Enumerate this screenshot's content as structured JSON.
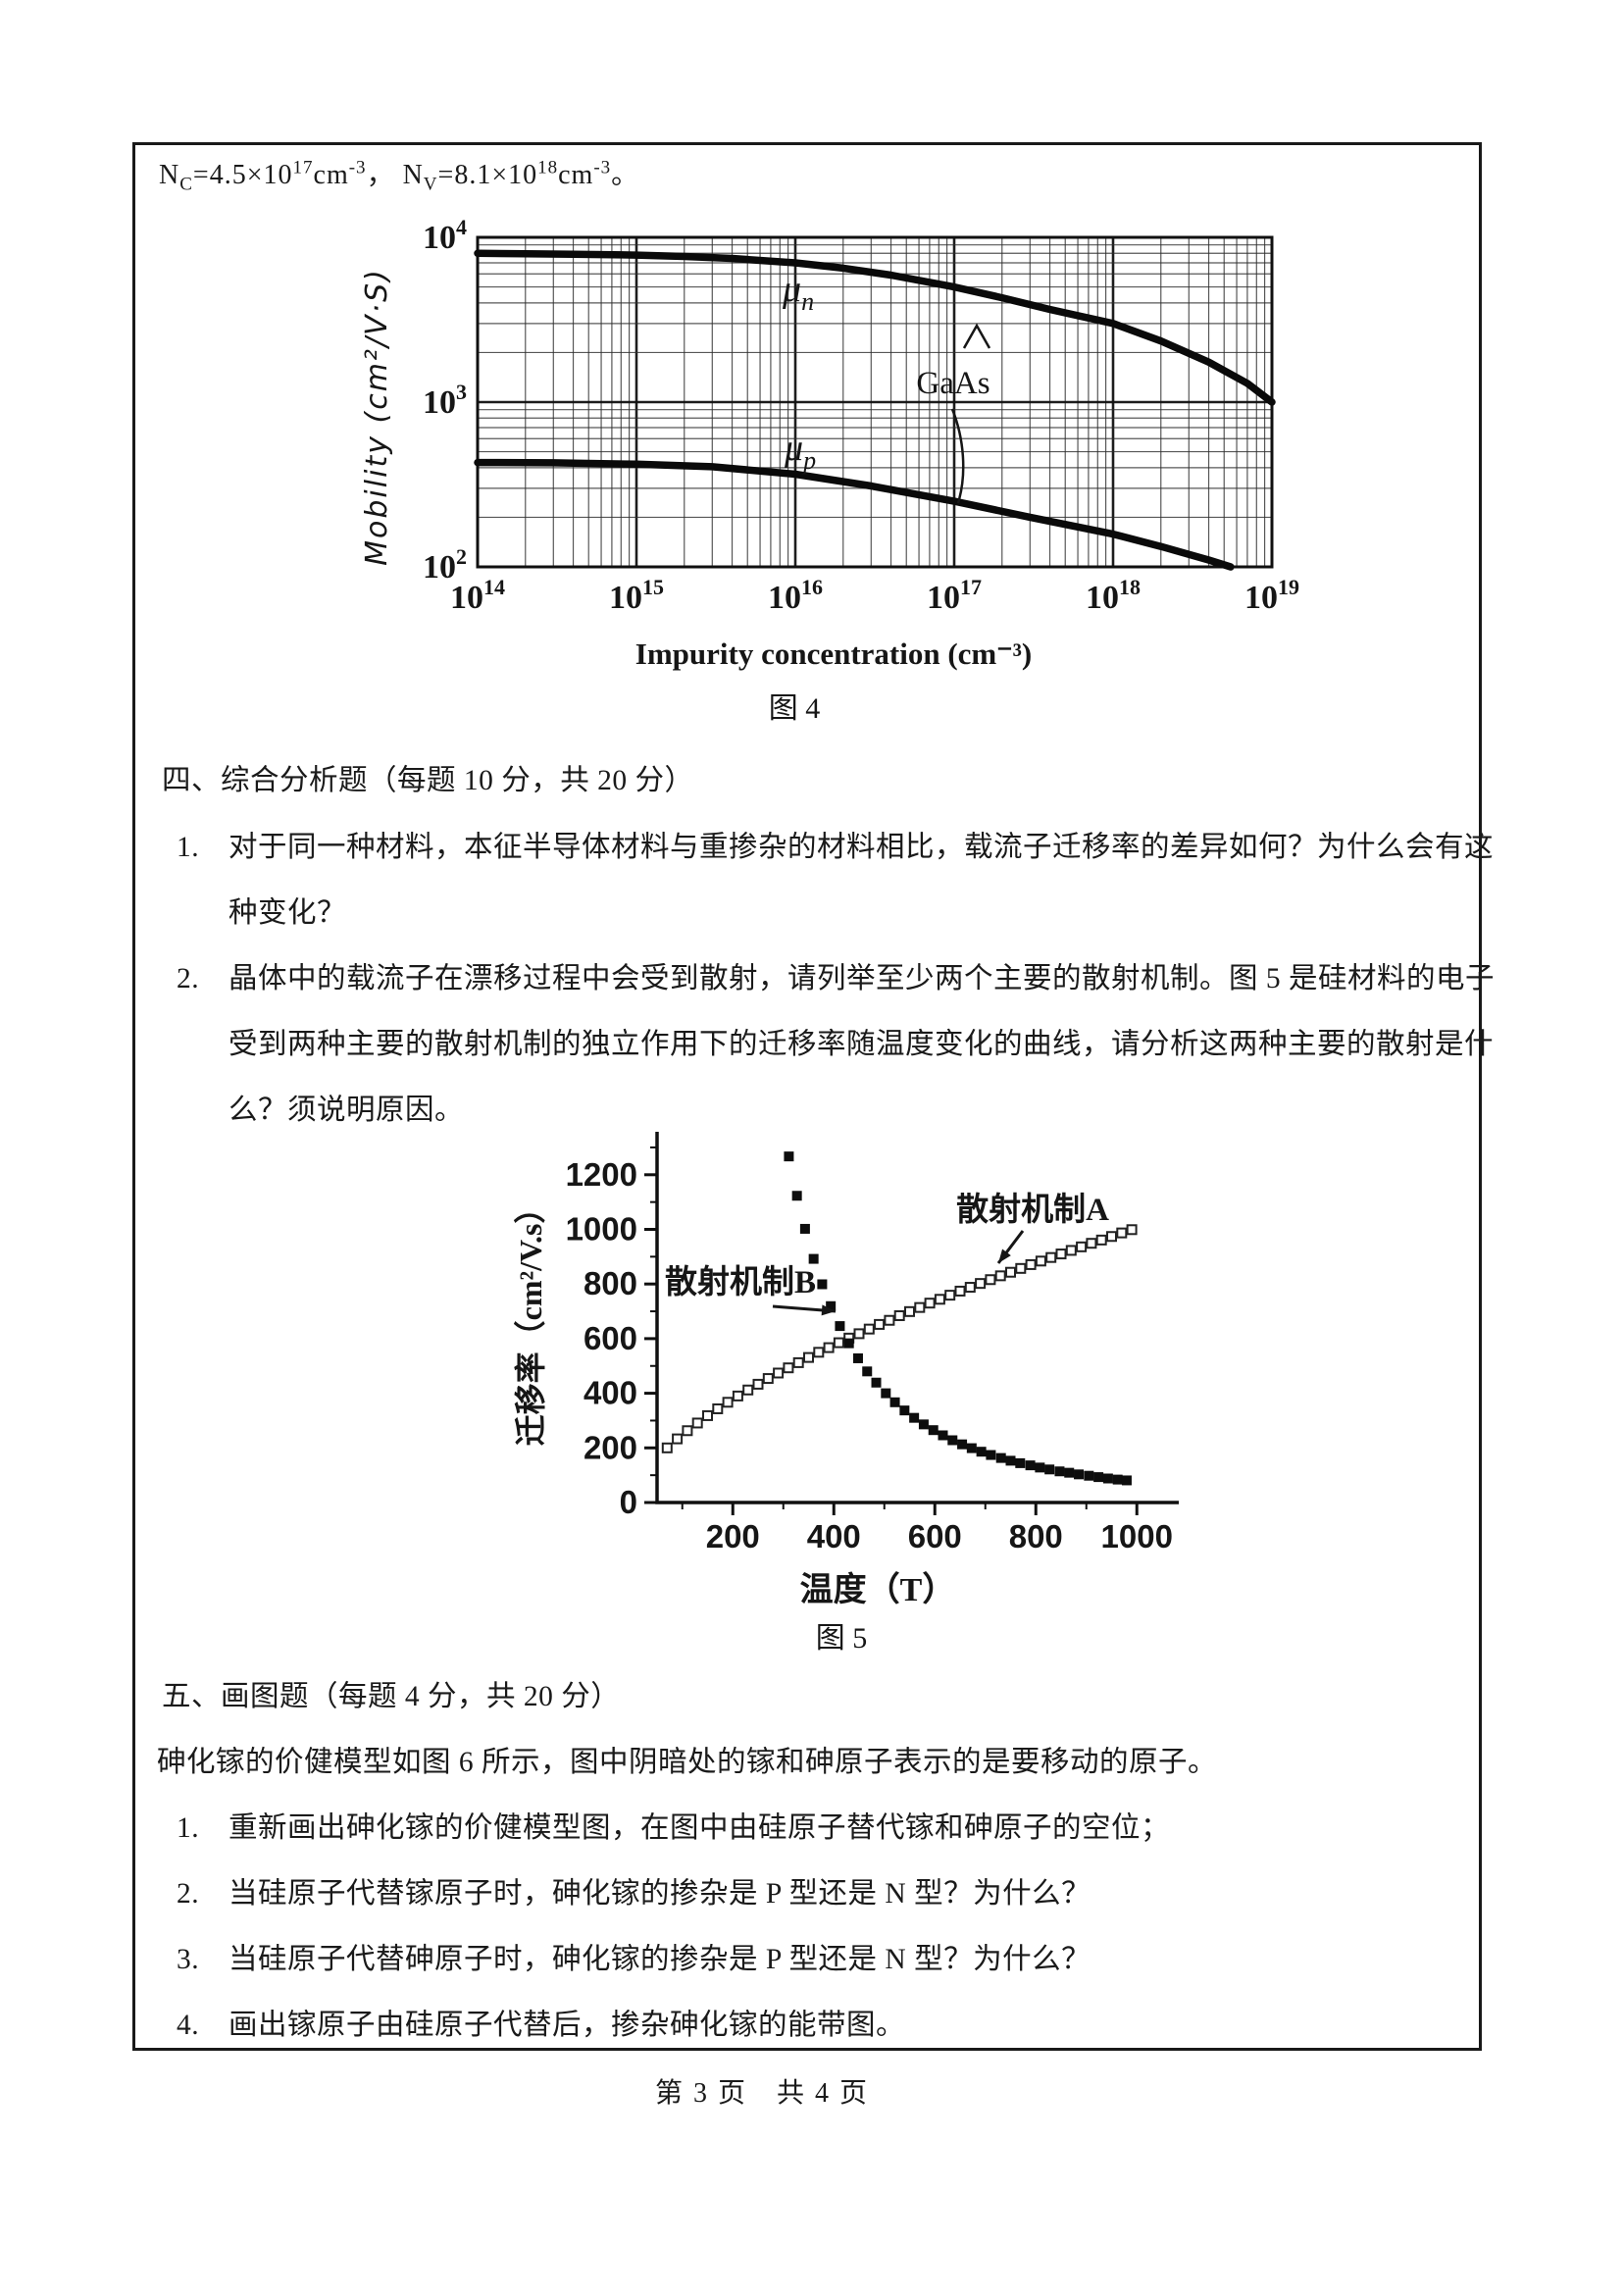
{
  "page": {
    "footer": "第 3 页　共 4 页",
    "ink_color": "#1a1a1a"
  },
  "constants_line": {
    "t1": "N",
    "s1": "C",
    "t2": "=4.5×10",
    "p2": "17",
    "t3": "cm",
    "p3": "-3",
    "t4": "，  N",
    "s4": "V",
    "t5": "=8.1×10",
    "p5": "18",
    "t6": "cm",
    "p6": "-3",
    "t7": "。"
  },
  "sections": {
    "four": {
      "heading": "四、综合分析题（每题 10 分，共 20 分）",
      "items": [
        {
          "num": "1.",
          "lines": [
            "对于同一种材料，本征半导体材料与重掺杂的材料相比，载流子迁移率的差异如何？为什么会有这",
            "种变化？"
          ]
        },
        {
          "num": "2.",
          "lines": [
            "晶体中的载流子在漂移过程中会受到散射，请列举至少两个主要的散射机制。图 5 是硅材料的电子",
            "受到两种主要的散射机制的独立作用下的迁移率随温度变化的曲线，请分析这两种主要的散射是什",
            "么？须说明原因。"
          ]
        }
      ]
    },
    "five": {
      "heading": "五、画图题（每题 4 分，共 20 分）",
      "intro": "砷化镓的价健模型如图 6 所示，图中阴暗处的镓和砷原子表示的是要移动的原子。",
      "items": [
        {
          "num": "1.",
          "text": "重新画出砷化镓的价健模型图，在图中由硅原子替代镓和砷原子的空位；"
        },
        {
          "num": "2.",
          "text": "当硅原子代替镓原子时，砷化镓的掺杂是 P 型还是 N 型？为什么？"
        },
        {
          "num": "3.",
          "text": "当硅原子代替砷原子时，砷化镓的掺杂是 P 型还是 N 型？为什么？"
        },
        {
          "num": "4.",
          "text": "画出镓原子由硅原子代替后，掺杂砷化镓的能带图。"
        }
      ]
    }
  },
  "chart_data": [
    {
      "type": "line",
      "scale": "log-log",
      "title": "图 4",
      "xlabel": "Impurity concentration (cm⁻³)",
      "ylabel": "Mobility (cm²/V·S)",
      "material_label": "GaAs",
      "xlim": [
        100000000000000.0,
        1e+19
      ],
      "ylim": [
        100,
        10000
      ],
      "x_tick_exponents": [
        14,
        15,
        16,
        17,
        18,
        19
      ],
      "y_tick_exponents": [
        4,
        3,
        2
      ],
      "grid": "log-minor-and-major",
      "series": [
        {
          "name": "electron-mobility",
          "label_base": "μ",
          "label_sub": "n",
          "points": [
            [
              100000000000000.0,
              8000
            ],
            [
              200000000000000.0,
              7950
            ],
            [
              400000000000000.0,
              7900
            ],
            [
              1000000000000000.0,
              7800
            ],
            [
              2000000000000000.0,
              7650
            ],
            [
              4000000000000000.0,
              7450
            ],
            [
              1e+16,
              7000
            ],
            [
              2e+16,
              6500
            ],
            [
              4e+16,
              5900
            ],
            [
              1e+17,
              5000
            ],
            [
              2e+17,
              4300
            ],
            [
              4e+17,
              3650
            ],
            [
              1e+18,
              3000
            ],
            [
              2e+18,
              2350
            ],
            [
              4e+18,
              1750
            ],
            [
              7e+18,
              1300
            ],
            [
              1e+19,
              1000
            ]
          ]
        },
        {
          "name": "hole-mobility",
          "label_base": "μ",
          "label_sub": "p",
          "points": [
            [
              100000000000000.0,
              430
            ],
            [
              300000000000000.0,
              428
            ],
            [
              1000000000000000.0,
              420
            ],
            [
              3000000000000000.0,
              405
            ],
            [
              1e+16,
              365
            ],
            [
              3e+16,
              310
            ],
            [
              1e+17,
              250
            ],
            [
              3e+17,
              200
            ],
            [
              1e+18,
              158
            ],
            [
              2e+18,
              133
            ],
            [
              4e+18,
              110
            ],
            [
              5.5e+18,
              100
            ]
          ]
        }
      ]
    },
    {
      "type": "scatter",
      "title": "图 5",
      "xlabel": "温度（T）",
      "ylabel": "迁移率（cm²/V.s）",
      "xlim": [
        50,
        1070
      ],
      "ylim": [
        0,
        1340
      ],
      "x_ticks": [
        200,
        400,
        600,
        800,
        1000
      ],
      "y_ticks": [
        0,
        200,
        400,
        600,
        800,
        1000,
        1200
      ],
      "annotations": [
        {
          "text": "散射机制A",
          "series": "A"
        },
        {
          "text": "散射机制B",
          "series": "B"
        }
      ],
      "series": [
        {
          "name": "散射机制A",
          "marker": "open-square",
          "points": [
            [
              70,
              200
            ],
            [
              90,
              233
            ],
            [
              110,
              263
            ],
            [
              130,
              291
            ],
            [
              150,
              318
            ],
            [
              170,
              343
            ],
            [
              190,
              367
            ],
            [
              210,
              390
            ],
            [
              230,
              412
            ],
            [
              250,
              433
            ],
            [
              270,
              454
            ],
            [
              290,
              474
            ],
            [
              310,
              493
            ],
            [
              330,
              512
            ],
            [
              350,
              531
            ],
            [
              370,
              550
            ],
            [
              390,
              567
            ],
            [
              410,
              585
            ],
            [
              430,
              602
            ],
            [
              450,
              618
            ],
            [
              470,
              635
            ],
            [
              490,
              652
            ],
            [
              510,
              667
            ],
            [
              530,
              684
            ],
            [
              550,
              699
            ],
            [
              570,
              714
            ],
            [
              590,
              730
            ],
            [
              610,
              744
            ],
            [
              630,
              759
            ],
            [
              650,
              774
            ],
            [
              670,
              788
            ],
            [
              690,
              802
            ],
            [
              710,
              816
            ],
            [
              730,
              830
            ],
            [
              750,
              843
            ],
            [
              770,
              857
            ],
            [
              790,
              871
            ],
            [
              810,
              884
            ],
            [
              830,
              897
            ],
            [
              850,
              910
            ],
            [
              870,
              923
            ],
            [
              890,
              936
            ],
            [
              910,
              949
            ],
            [
              930,
              961
            ],
            [
              950,
              974
            ],
            [
              970,
              987
            ],
            [
              990,
              999
            ]
          ]
        },
        {
          "name": "散射机制B",
          "marker": "filled-square",
          "points": [
            [
              311,
              1267
            ],
            [
              327,
              1123
            ],
            [
              343,
              1002
            ],
            [
              360,
              892
            ],
            [
              377,
              799
            ],
            [
              394,
              719
            ],
            [
              412,
              646
            ],
            [
              430,
              583
            ],
            [
              448,
              528
            ],
            [
              466,
              480
            ],
            [
              484,
              439
            ],
            [
              503,
              400
            ],
            [
              521,
              367
            ],
            [
              540,
              337
            ],
            [
              559,
              310
            ],
            [
              578,
              286
            ],
            [
              597,
              265
            ],
            [
              616,
              246
            ],
            [
              635,
              228
            ],
            [
              654,
              213
            ],
            [
              673,
              199
            ],
            [
              692,
              186
            ],
            [
              711,
              174
            ],
            [
              731,
              163
            ],
            [
              750,
              153
            ],
            [
              769,
              144
            ],
            [
              789,
              136
            ],
            [
              808,
              128
            ],
            [
              827,
              121
            ],
            [
              847,
              114
            ],
            [
              866,
              109
            ],
            [
              885,
              103
            ],
            [
              905,
              98
            ],
            [
              924,
              93
            ],
            [
              943,
              88
            ],
            [
              962,
              84
            ],
            [
              980,
              81
            ]
          ]
        }
      ]
    }
  ]
}
